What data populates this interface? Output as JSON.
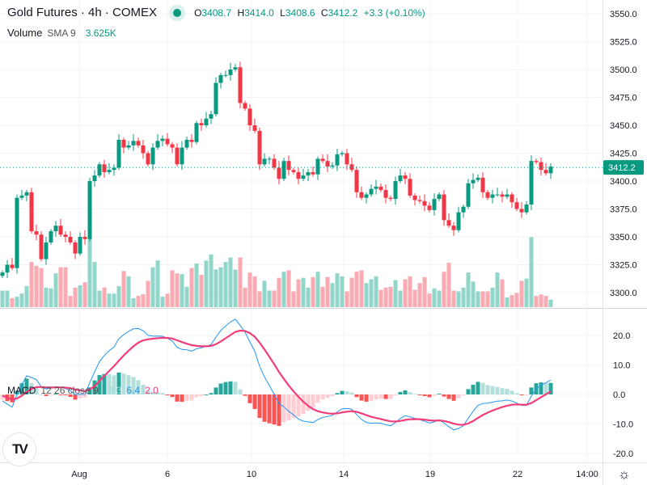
{
  "header": {
    "title": "Gold Futures · 4h · COMEX",
    "open_label": "O",
    "open": "3408.7",
    "high_label": "H",
    "high": "3414.0",
    "low_label": "L",
    "low": "3408.6",
    "close_label": "C",
    "close": "3412.2",
    "change": "+3.3 (+0.10%)"
  },
  "volume_legend": {
    "label": "Volume",
    "sma": "SMA 9",
    "value": "3.625K"
  },
  "macd_legend": {
    "label": "MACD",
    "params": "12 26 close 9",
    "hist": "4.3",
    "macd": "6.4",
    "signal": "2.0"
  },
  "colors": {
    "up": "#089981",
    "down": "#f23645",
    "vol_up": "#92d6c9",
    "vol_down": "#f9aab2",
    "macd": "#2196f3",
    "signal": "#f23d7a",
    "hist_up_strong": "#26a69a",
    "hist_up_weak": "#b2dfdb",
    "hist_down_strong": "#ff5252",
    "hist_down_weak": "#ffcdd2"
  },
  "logo": "TV",
  "settings_icon": "gear-icon",
  "chart_data": {
    "type": "candlestick",
    "price_axis": {
      "ticks": [
        "3550.0",
        "3525.0",
        "3500.0",
        "3475.0",
        "3450.0",
        "3425.0",
        "3400.0",
        "3375.0",
        "3350.0",
        "3325.0",
        "3300.0"
      ],
      "range": [
        3287,
        3555
      ]
    },
    "current_price": "3412.2",
    "macd_axis": {
      "ticks": [
        "20.0",
        "10.0",
        "0.0",
        "-10.0",
        "-20.0"
      ],
      "range": [
        -24,
        27
      ]
    },
    "time_axis": [
      "Aug",
      "6",
      "10",
      "14",
      "19",
      "22",
      "14:00"
    ],
    "closes": [
      3318,
      3325,
      3322,
      3385,
      3387,
      3390,
      3355,
      3352,
      3330,
      3345,
      3355,
      3360,
      3352,
      3350,
      3345,
      3335,
      3350,
      3348,
      3400,
      3405,
      3415,
      3408,
      3410,
      3412,
      3437,
      3430,
      3432,
      3436,
      3432,
      3425,
      3415,
      3430,
      3436,
      3438,
      3433,
      3430,
      3415,
      3430,
      3437,
      3435,
      3452,
      3450,
      3456,
      3460,
      3488,
      3495,
      3495,
      3500,
      3502,
      3470,
      3465,
      3450,
      3445,
      3415,
      3420,
      3420,
      3412,
      3402,
      3418,
      3410,
      3408,
      3402,
      3405,
      3408,
      3406,
      3420,
      3418,
      3413,
      3414,
      3424,
      3425,
      3415,
      3410,
      3390,
      3385,
      3388,
      3393,
      3395,
      3392,
      3385,
      3384,
      3400,
      3405,
      3402,
      3387,
      3383,
      3382,
      3378,
      3374,
      3384,
      3388,
      3365,
      3360,
      3356,
      3372,
      3377,
      3398,
      3401,
      3403,
      3390,
      3385,
      3388,
      3388,
      3386,
      3388,
      3381,
      3375,
      3372,
      3379,
      3418,
      3417,
      3410,
      3407,
      3413
    ],
    "volumes": [
      2.2,
      2.2,
      1.2,
      1.4,
      1.8,
      2.8,
      6.0,
      5.5,
      5.2,
      2.6,
      2.5,
      4.5,
      5.3,
      5.3,
      1.5,
      2.6,
      2.9,
      3.3,
      10.2,
      6.0,
      2.2,
      2.6,
      1.8,
      1.8,
      2.8,
      4.8,
      4.1,
      1.2,
      1.5,
      1.7,
      3.5,
      5.3,
      6.2,
      1.4,
      1.8,
      4.9,
      4.5,
      4.4,
      2.7,
      5.2,
      5.8,
      4.3,
      6.2,
      7.0,
      5.0,
      5.3,
      6.0,
      6.6,
      5.0,
      6.6,
      2.6,
      4.6,
      4.1,
      2.1,
      3.5,
      2.2,
      2.2,
      3.9,
      4.7,
      4.9,
      2.1,
      3.7,
      3.9,
      2.6,
      4.0,
      4.7,
      2.7,
      4.0,
      3.2,
      4.5,
      4.1,
      2.1,
      3.9,
      4.7,
      4.9,
      3.2,
      3.7,
      4.1,
      2.3,
      2.6,
      2.7,
      3.6,
      2.2,
      3.7,
      4.1,
      2.3,
      3.2,
      4.0,
      1.8,
      2.5,
      2.2,
      4.7,
      5.9,
      2.2,
      2.1,
      2.6,
      4.6,
      3.4,
      2.1,
      2.1,
      2.1,
      2.6,
      4.6,
      3.7,
      1.3,
      1.6,
      1.9,
      3.5,
      3.8,
      9.3,
      1.5,
      1.7,
      1.5,
      1.0
    ]
  }
}
